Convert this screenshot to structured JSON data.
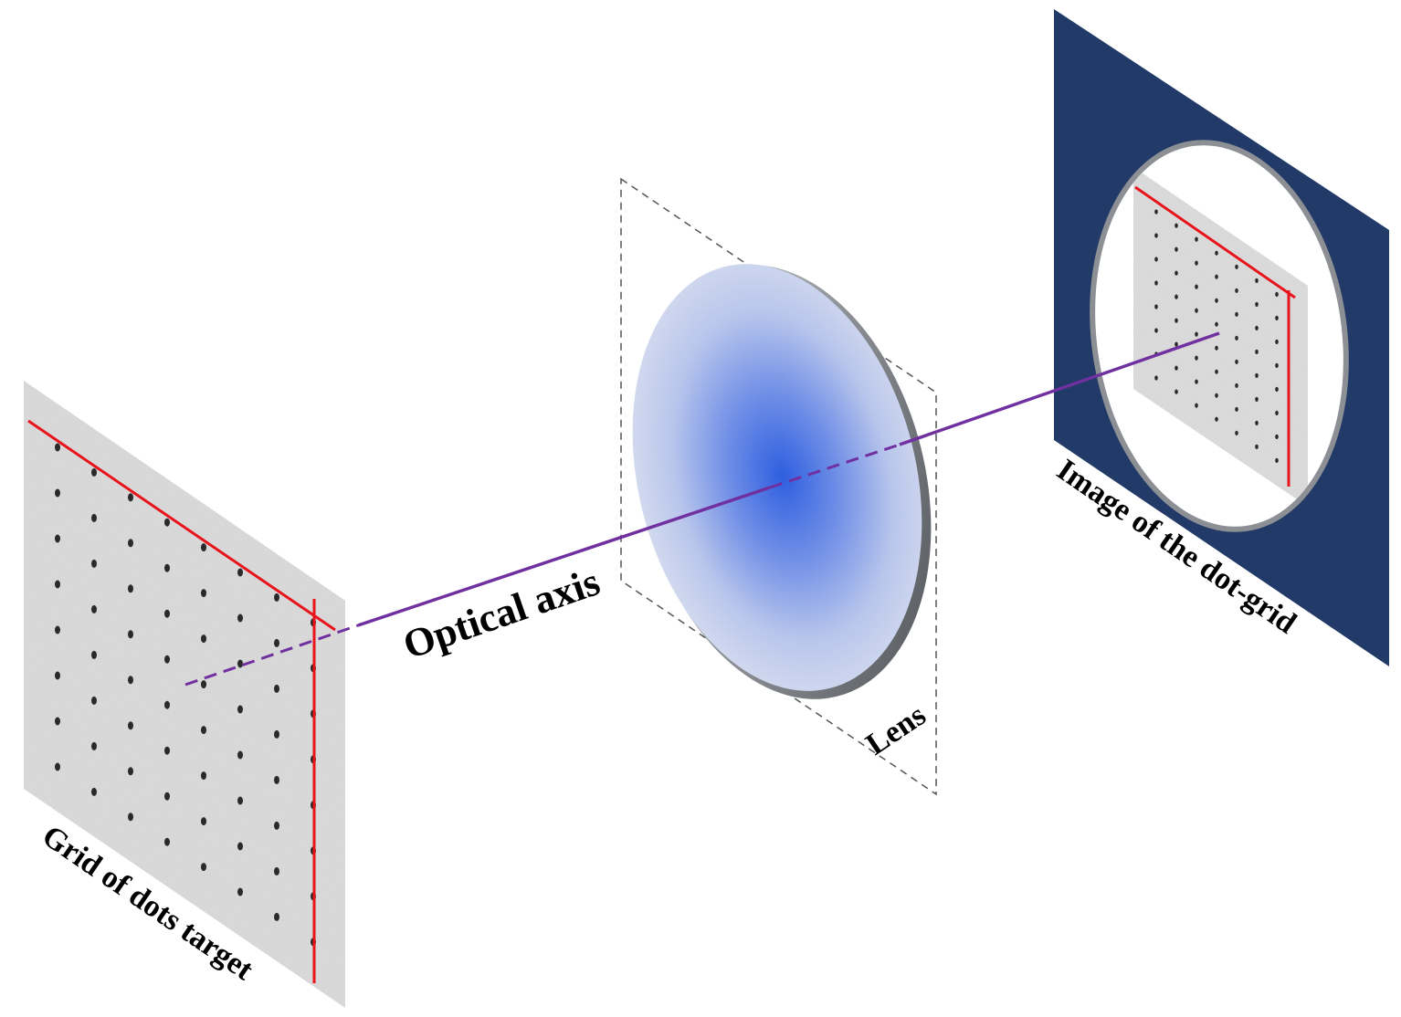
{
  "labels": {
    "target": "Grid of dots target",
    "axis": "Optical axis",
    "lens": "Lens",
    "image": "Image of the dot-grid"
  },
  "colors": {
    "background": "#ffffff",
    "target_panel": "#dcdcdc",
    "dot": "#2a2a2a",
    "red_reference_lines": "#e8131b",
    "optical_axis": "#7030a0",
    "lens_center": "#2f5fe0",
    "lens_edge": "#d6ddef",
    "lens_rim": "#6f7378",
    "sensor_panel": "#223a68",
    "dashed_frame": "#555555"
  }
}
